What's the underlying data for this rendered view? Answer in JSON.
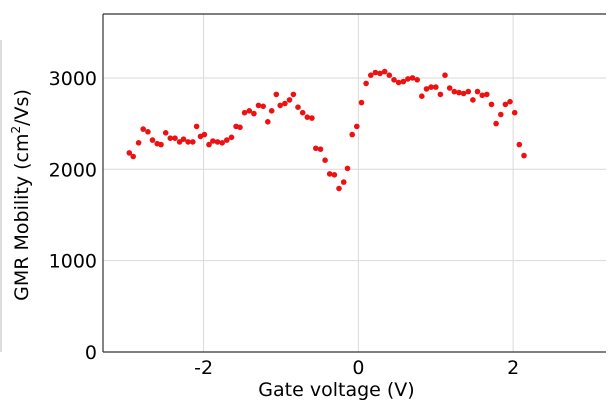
{
  "chart_data": {
    "type": "scatter",
    "xlabel": "Gate voltage (V)",
    "ylabel_main": "GMR Mobility (cm",
    "ylabel_sup": "2",
    "ylabel_tail": "/Vs)",
    "xlim": [
      -3.3,
      3.2
    ],
    "ylim": [
      0,
      3700
    ],
    "xticks": [
      -2,
      0,
      2
    ],
    "xtick_labels": [
      "-2",
      "0",
      "2"
    ],
    "yticks": [
      0,
      1000,
      2000,
      3000
    ],
    "ytick_labels": [
      "0",
      "1000",
      "2000",
      "3000"
    ],
    "grid": true,
    "marker_color": "#ee1111",
    "series": [
      {
        "points": [
          [
            -2.96,
            2180
          ],
          [
            -2.91,
            2140
          ],
          [
            -2.84,
            2290
          ],
          [
            -2.78,
            2440
          ],
          [
            -2.72,
            2410
          ],
          [
            -2.66,
            2320
          ],
          [
            -2.6,
            2280
          ],
          [
            -2.55,
            2270
          ],
          [
            -2.49,
            2400
          ],
          [
            -2.43,
            2340
          ],
          [
            -2.37,
            2340
          ],
          [
            -2.31,
            2300
          ],
          [
            -2.26,
            2330
          ],
          [
            -2.2,
            2300
          ],
          [
            -2.14,
            2300
          ],
          [
            -2.09,
            2470
          ],
          [
            -2.04,
            2360
          ],
          [
            -1.99,
            2380
          ],
          [
            -1.93,
            2270
          ],
          [
            -1.88,
            2310
          ],
          [
            -1.82,
            2300
          ],
          [
            -1.76,
            2290
          ],
          [
            -1.7,
            2320
          ],
          [
            -1.64,
            2350
          ],
          [
            -1.58,
            2470
          ],
          [
            -1.53,
            2460
          ],
          [
            -1.47,
            2620
          ],
          [
            -1.41,
            2640
          ],
          [
            -1.35,
            2610
          ],
          [
            -1.29,
            2700
          ],
          [
            -1.23,
            2690
          ],
          [
            -1.17,
            2520
          ],
          [
            -1.12,
            2640
          ],
          [
            -1.06,
            2820
          ],
          [
            -1.01,
            2700
          ],
          [
            -0.95,
            2720
          ],
          [
            -0.89,
            2760
          ],
          [
            -0.84,
            2820
          ],
          [
            -0.78,
            2680
          ],
          [
            -0.72,
            2620
          ],
          [
            -0.66,
            2570
          ],
          [
            -0.6,
            2560
          ],
          [
            -0.55,
            2230
          ],
          [
            -0.49,
            2220
          ],
          [
            -0.43,
            2100
          ],
          [
            -0.37,
            1950
          ],
          [
            -0.31,
            1940
          ],
          [
            -0.25,
            1790
          ],
          [
            -0.19,
            1860
          ],
          [
            -0.14,
            2010
          ],
          [
            -0.08,
            2380
          ],
          [
            -0.02,
            2470
          ],
          [
            0.04,
            2730
          ],
          [
            0.1,
            2940
          ],
          [
            0.16,
            3030
          ],
          [
            0.22,
            3060
          ],
          [
            0.28,
            3050
          ],
          [
            0.34,
            3070
          ],
          [
            0.4,
            3030
          ],
          [
            0.46,
            2980
          ],
          [
            0.52,
            2950
          ],
          [
            0.58,
            2960
          ],
          [
            0.64,
            2990
          ],
          [
            0.7,
            3000
          ],
          [
            0.76,
            2980
          ],
          [
            0.82,
            2800
          ],
          [
            0.88,
            2880
          ],
          [
            0.94,
            2900
          ],
          [
            1.0,
            2900
          ],
          [
            1.06,
            2820
          ],
          [
            1.12,
            3030
          ],
          [
            1.18,
            2890
          ],
          [
            1.24,
            2850
          ],
          [
            1.3,
            2840
          ],
          [
            1.36,
            2830
          ],
          [
            1.42,
            2850
          ],
          [
            1.48,
            2760
          ],
          [
            1.54,
            2850
          ],
          [
            1.6,
            2810
          ],
          [
            1.66,
            2820
          ],
          [
            1.72,
            2710
          ],
          [
            1.78,
            2500
          ],
          [
            1.84,
            2600
          ],
          [
            1.9,
            2710
          ],
          [
            1.96,
            2740
          ],
          [
            2.02,
            2620
          ],
          [
            2.08,
            2270
          ],
          [
            2.14,
            2150
          ]
        ]
      }
    ]
  }
}
